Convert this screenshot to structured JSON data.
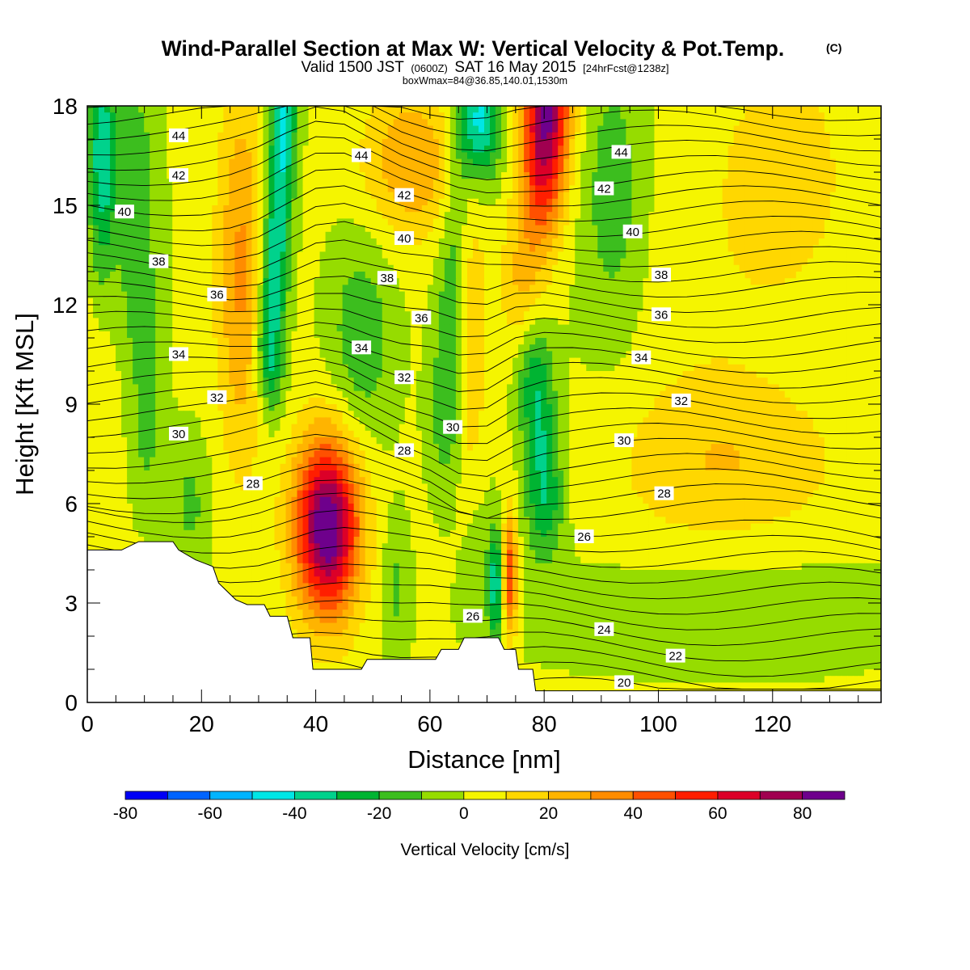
{
  "title": {
    "main": "Wind-Parallel Section at Max W: Vertical Velocity & Pot.Temp.",
    "copyright": "(C)",
    "valid_prefix": "Valid 1500 JST",
    "valid_utc": "(0600Z)",
    "valid_date": "SAT 16 May 2015",
    "forecast": "[24hrFcst@1238z]",
    "box_info": "boxWmax=84@36.85,140.01,1530m"
  },
  "chart_data": {
    "type": "heatmap",
    "xlabel": "Distance [nm]",
    "ylabel": "Height [Kft MSL]",
    "xlim": [
      0,
      139
    ],
    "ylim": [
      0,
      18
    ],
    "x_ticks": [
      0,
      20,
      40,
      60,
      80,
      100,
      120
    ],
    "y_ticks": [
      0,
      3,
      6,
      9,
      12,
      15,
      18
    ],
    "colorbar": {
      "label": "Vertical Velocity [cm/s]",
      "levels": [
        -80,
        -70,
        -60,
        -50,
        -40,
        -30,
        -20,
        -10,
        0,
        10,
        20,
        30,
        40,
        50,
        60,
        70,
        80,
        90
      ],
      "tick_labels": [
        -80,
        -60,
        -40,
        -20,
        0,
        20,
        40,
        60,
        80
      ],
      "colors": [
        "#0000f5",
        "#0064ff",
        "#00b4ff",
        "#00e6e6",
        "#00d28c",
        "#00b432",
        "#3cbe1e",
        "#96dc00",
        "#f5f500",
        "#ffd700",
        "#ffb400",
        "#ff8c00",
        "#ff5000",
        "#ff1e00",
        "#dc0028",
        "#a00050",
        "#6e008c"
      ]
    },
    "theta_contour_labels": [
      {
        "value": "44",
        "x": 16,
        "y": 17.1
      },
      {
        "value": "42",
        "x": 16,
        "y": 15.9
      },
      {
        "value": "40",
        "x": 6.5,
        "y": 14.8
      },
      {
        "value": "38",
        "x": 12.5,
        "y": 13.3
      },
      {
        "value": "36",
        "x": 22.7,
        "y": 12.3
      },
      {
        "value": "34",
        "x": 16,
        "y": 10.5
      },
      {
        "value": "32",
        "x": 22.7,
        "y": 9.2
      },
      {
        "value": "30",
        "x": 16,
        "y": 8.1
      },
      {
        "value": "28",
        "x": 29,
        "y": 6.6
      },
      {
        "value": "44",
        "x": 48,
        "y": 16.5
      },
      {
        "value": "42",
        "x": 55.5,
        "y": 15.3
      },
      {
        "value": "40",
        "x": 55.5,
        "y": 14.0
      },
      {
        "value": "38",
        "x": 52.5,
        "y": 12.8
      },
      {
        "value": "36",
        "x": 58.5,
        "y": 11.6
      },
      {
        "value": "34",
        "x": 48,
        "y": 10.7
      },
      {
        "value": "32",
        "x": 55.5,
        "y": 9.8
      },
      {
        "value": "30",
        "x": 64,
        "y": 8.3
      },
      {
        "value": "28",
        "x": 55.5,
        "y": 7.6
      },
      {
        "value": "26",
        "x": 67.5,
        "y": 2.6
      },
      {
        "value": "44",
        "x": 93.5,
        "y": 16.6
      },
      {
        "value": "42",
        "x": 90.5,
        "y": 15.5
      },
      {
        "value": "40",
        "x": 95.5,
        "y": 14.2
      },
      {
        "value": "38",
        "x": 100.5,
        "y": 12.9
      },
      {
        "value": "36",
        "x": 100.5,
        "y": 11.7
      },
      {
        "value": "34",
        "x": 97,
        "y": 10.4
      },
      {
        "value": "32",
        "x": 104,
        "y": 9.1
      },
      {
        "value": "30",
        "x": 94,
        "y": 7.9
      },
      {
        "value": "28",
        "x": 101,
        "y": 6.3
      },
      {
        "value": "26",
        "x": 87,
        "y": 5.0
      },
      {
        "value": "24",
        "x": 90.5,
        "y": 2.2
      },
      {
        "value": "22",
        "x": 103,
        "y": 1.4
      },
      {
        "value": "20",
        "x": 94,
        "y": 0.6
      }
    ],
    "terrain": [
      [
        0,
        4.6
      ],
      [
        3,
        4.6
      ],
      [
        6,
        4.6
      ],
      [
        9,
        4.85
      ],
      [
        12,
        4.85
      ],
      [
        15,
        4.85
      ],
      [
        16,
        4.6
      ],
      [
        19,
        4.3
      ],
      [
        22,
        4.1
      ],
      [
        23,
        3.6
      ],
      [
        26,
        3.1
      ],
      [
        28,
        2.95
      ],
      [
        31,
        2.95
      ],
      [
        32,
        2.6
      ],
      [
        35,
        2.6
      ],
      [
        36,
        1.95
      ],
      [
        39,
        1.95
      ],
      [
        39.5,
        1.0
      ],
      [
        42,
        1.0
      ],
      [
        45,
        1.0
      ],
      [
        48,
        1.0
      ],
      [
        49,
        1.3
      ],
      [
        52,
        1.3
      ],
      [
        55,
        1.3
      ],
      [
        58,
        1.3
      ],
      [
        61,
        1.3
      ],
      [
        62,
        1.6
      ],
      [
        65,
        1.6
      ],
      [
        66,
        1.95
      ],
      [
        69,
        1.95
      ],
      [
        72,
        1.95
      ],
      [
        73,
        1.6
      ],
      [
        75,
        1.6
      ],
      [
        75.5,
        1.0
      ],
      [
        78,
        1.0
      ],
      [
        78.5,
        0.35
      ],
      [
        139,
        0.35
      ]
    ]
  }
}
